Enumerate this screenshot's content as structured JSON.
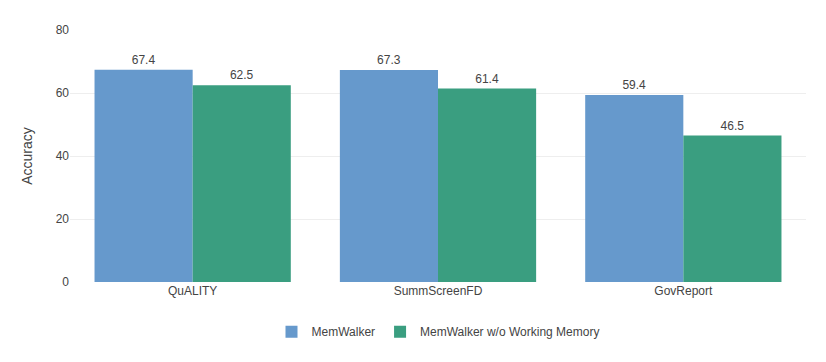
{
  "chart_data": {
    "type": "bar",
    "categories": [
      "QuALITY",
      "SummScreenFD",
      "GovReport"
    ],
    "series": [
      {
        "name": "MemWalker",
        "color": "#6699cc",
        "values": [
          67.4,
          67.3,
          59.4
        ]
      },
      {
        "name": "MemWalker w/o Working Memory",
        "color": "#3a9e80",
        "values": [
          62.5,
          61.4,
          46.5
        ]
      }
    ],
    "ylabel": "Accuracy",
    "ylim": [
      0,
      80
    ],
    "yticks": [
      0,
      20,
      40,
      60,
      80
    ],
    "grid": true,
    "data_labels": true,
    "legend": "bottom"
  }
}
